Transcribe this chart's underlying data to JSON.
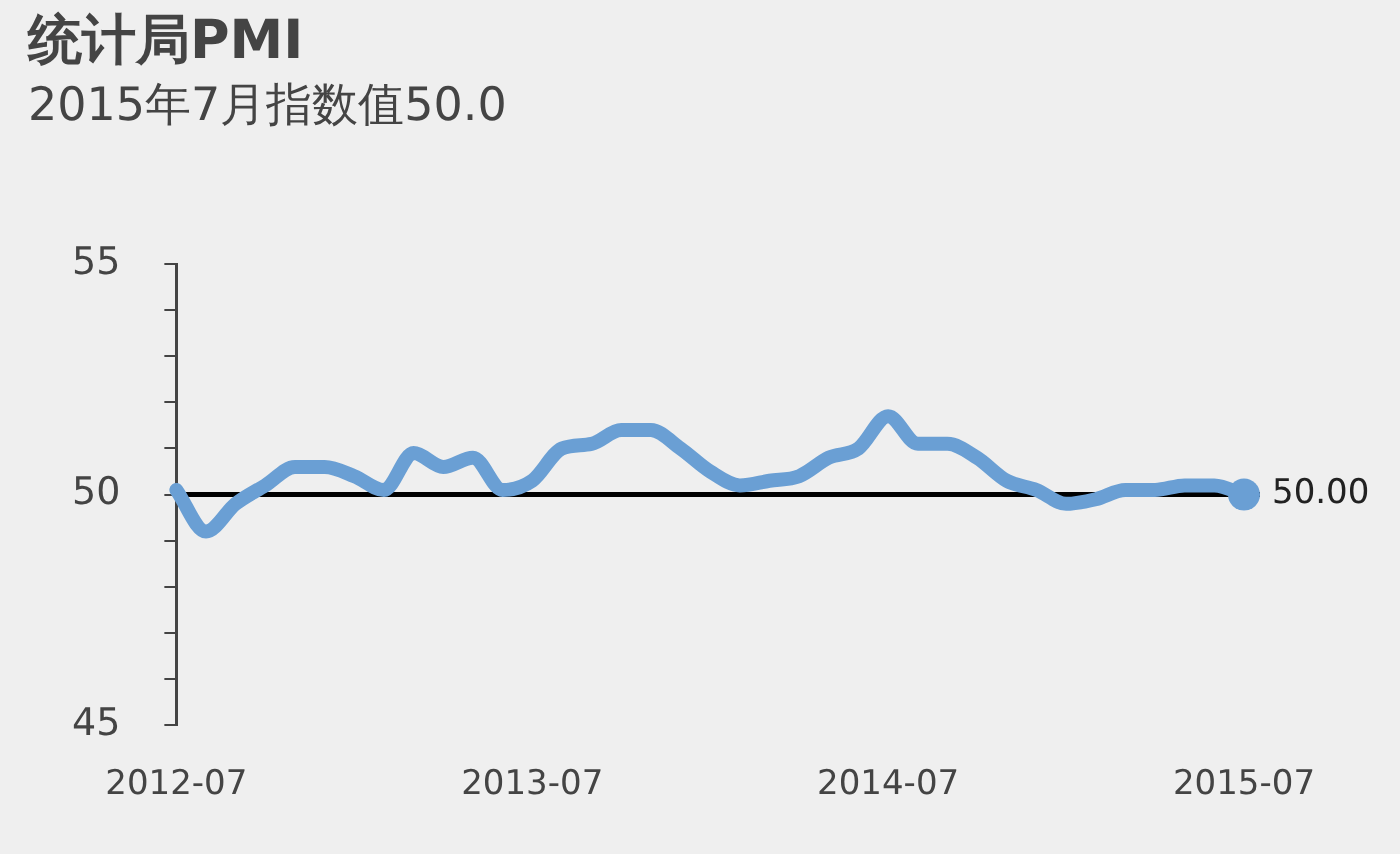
{
  "chart_data": {
    "type": "line",
    "title": "统计局PMI",
    "subtitle": "2015年7月指数值50.0",
    "categories": [
      "2012-07",
      null,
      null,
      null,
      null,
      null,
      null,
      null,
      null,
      null,
      null,
      null,
      "2013-07",
      null,
      null,
      null,
      null,
      null,
      null,
      null,
      null,
      null,
      null,
      null,
      "2014-07",
      null,
      null,
      null,
      null,
      null,
      null,
      null,
      null,
      null,
      null,
      null,
      "2015-07"
    ],
    "series": [
      {
        "color": "#6a9fd4",
        "values": [
          50.1,
          49.2,
          49.8,
          50.2,
          50.6,
          50.6,
          50.4,
          50.1,
          50.9,
          50.6,
          50.8,
          50.1,
          50.3,
          51.0,
          51.1,
          51.4,
          51.4,
          51.0,
          50.5,
          50.2,
          50.3,
          50.4,
          50.8,
          51.0,
          51.7,
          51.1,
          51.1,
          50.8,
          50.3,
          50.1,
          49.8,
          49.9,
          50.1,
          50.1,
          50.2,
          50.2,
          50.0
        ],
        "value_labels": [
          null,
          null,
          null,
          null,
          null,
          null,
          null,
          null,
          null,
          null,
          null,
          null,
          null,
          null,
          null,
          null,
          null,
          null,
          null,
          null,
          null,
          null,
          null,
          null,
          null,
          null,
          null,
          null,
          null,
          null,
          null,
          null,
          null,
          null,
          null,
          null,
          "50.00"
        ]
      }
    ],
    "ylim": [
      45,
      55
    ],
    "yticks": [
      45,
      {
        "value": 46,
        "label": null
      },
      {
        "value": 47,
        "label": null
      },
      {
        "value": 48,
        "label": null
      },
      {
        "value": 49,
        "label": null
      },
      50,
      {
        "value": 51,
        "label": null
      },
      {
        "value": 52,
        "label": null
      },
      {
        "value": 53,
        "label": null
      },
      {
        "value": 54,
        "label": null
      },
      55
    ],
    "ref_lines": [
      {
        "axis": "y",
        "value": 50,
        "color": "#000000"
      }
    ],
    "grid": false,
    "legend": false,
    "marker": "none",
    "line_style": "solid"
  }
}
